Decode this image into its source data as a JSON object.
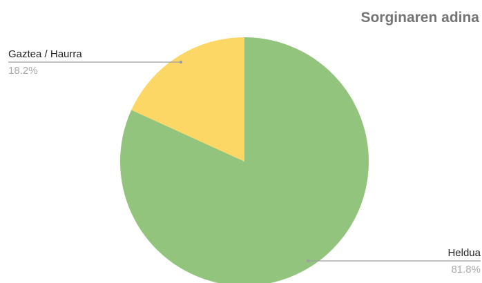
{
  "chart_data": {
    "type": "pie",
    "title": "Sorginaren adina",
    "categories": [
      "Gaztea / Haurra",
      "Heldua"
    ],
    "values": [
      18.2,
      81.8
    ],
    "percent_labels": [
      "18.2%",
      "81.8%"
    ],
    "colors": [
      "#fdd766",
      "#93c47d"
    ],
    "leader_color": "#9e9e9e"
  }
}
